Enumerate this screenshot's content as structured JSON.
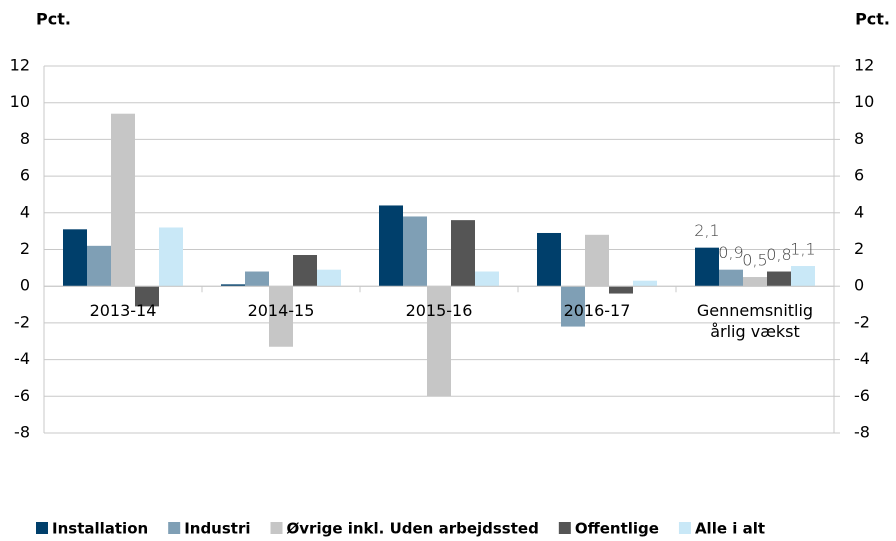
{
  "chart_data": {
    "type": "bar",
    "ylabel": "Pct.",
    "y2label": "Pct.",
    "categories": [
      "2013-14",
      "2014-15",
      "2015-16",
      "2016-17",
      "Gennemsnitlig årlig vækst"
    ],
    "series": [
      {
        "name": "Installation",
        "color": "#003f6b",
        "values": [
          3.1,
          0.1,
          4.4,
          2.9,
          2.1
        ],
        "value_labels": [
          null,
          null,
          null,
          null,
          "2,1"
        ]
      },
      {
        "name": "Industri",
        "color": "#7f9fb5",
        "values": [
          2.2,
          0.8,
          3.8,
          -2.2,
          0.9
        ],
        "value_labels": [
          null,
          null,
          null,
          null,
          "0,9"
        ]
      },
      {
        "name": "Øvrige inkl. Uden arbejdssted",
        "color": "#c6c6c6",
        "values": [
          9.4,
          -3.3,
          -6.0,
          2.8,
          0.5
        ],
        "value_labels": [
          null,
          null,
          null,
          null,
          "0,5"
        ]
      },
      {
        "name": "Offentlige",
        "color": "#555555",
        "values": [
          -1.1,
          1.7,
          3.6,
          -0.4,
          0.8
        ],
        "value_labels": [
          null,
          null,
          null,
          null,
          "0,8"
        ]
      },
      {
        "name": "Alle i alt",
        "color": "#c9e8f7",
        "values": [
          3.2,
          0.9,
          0.8,
          0.3,
          1.1
        ],
        "value_labels": [
          null,
          null,
          null,
          null,
          "1,1"
        ]
      }
    ],
    "ylim": [
      -8,
      12
    ],
    "yticks": [
      -8,
      -6,
      -4,
      -2,
      0,
      2,
      4,
      6,
      8,
      10,
      12
    ],
    "y2lim": [
      -8,
      12
    ],
    "y2ticks": [
      -8,
      -6,
      -4,
      -2,
      0,
      2,
      4,
      6,
      8,
      10,
      12
    ],
    "grid": true
  }
}
